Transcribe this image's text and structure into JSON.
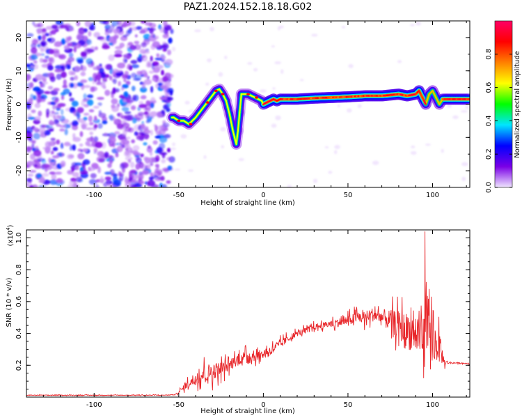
{
  "title": "PAZ1.2024.152.18.18.G02",
  "chart_data": [
    {
      "type": "heatmap",
      "xlabel": "Height of straight line (km)",
      "ylabel": "Frequency (Hz)",
      "xlim": [
        -140,
        122
      ],
      "ylim": [
        -25,
        25
      ],
      "x_ticks": [
        -100,
        -50,
        0,
        50,
        100
      ],
      "y_ticks": [
        -20,
        -10,
        0,
        10,
        20
      ],
      "colorbar": {
        "label": "Normalized spectral amplitude",
        "range": [
          0,
          1
        ],
        "ticks": [
          0.0,
          0.2,
          0.4,
          0.6,
          0.8
        ],
        "tick_labels": [
          "0.0",
          "0.2",
          "0.4",
          "0.6",
          "0.8"
        ],
        "colors": [
          "#f0e6ff",
          "#7a00e6",
          "#0000ff",
          "#00e5ff",
          "#00ff00",
          "#ffff00",
          "#ff8000",
          "#ff0000",
          "#ff0066"
        ]
      },
      "ridge": {
        "description_points_x": [
          -53,
          -50,
          -47,
          -44,
          -42,
          -40,
          -37,
          -34,
          -31,
          -28,
          -26,
          -24,
          -22,
          -20,
          -18,
          -16,
          -15,
          -13,
          -11,
          -9,
          -7,
          -5,
          -3,
          -1,
          0,
          2,
          4,
          6,
          8,
          10,
          15,
          20,
          30,
          40,
          50,
          60,
          70,
          80,
          85,
          90,
          92,
          94,
          96,
          98,
          100,
          102,
          104,
          106,
          110,
          115,
          120
        ],
        "frequency_hz": [
          -4,
          -5,
          -5,
          -6,
          -5,
          -4,
          -2,
          0,
          2,
          4,
          4.5,
          3,
          1,
          -3,
          -8,
          -12,
          -8,
          3,
          3,
          3,
          2.5,
          2,
          1.5,
          1,
          0,
          0.5,
          1,
          1.5,
          1,
          1.5,
          1.5,
          1.5,
          1.8,
          2,
          2.2,
          2.5,
          2.5,
          3,
          2.5,
          3,
          4,
          2,
          0,
          3,
          4,
          2,
          0,
          1.5,
          1.5,
          1.5,
          1.5
        ]
      }
    },
    {
      "type": "line",
      "xlabel": "Height of straight line (km)",
      "ylabel": "SNR (10 * v/v)",
      "y_multiplier": "(x10",
      "y_multiplier_exp": "4",
      "y_multiplier_close": ")",
      "xlim": [
        -140,
        122
      ],
      "ylim": [
        0,
        1.05
      ],
      "x_ticks": [
        -100,
        -50,
        0,
        50,
        100
      ],
      "y_ticks": [
        0.2,
        0.4,
        0.6,
        0.8,
        1.0
      ],
      "y_tick_labels": [
        "0.2",
        "0.4",
        "0.6",
        "0.8",
        "1.0"
      ],
      "line_color": "#e8262a",
      "envelope_x": [
        -140,
        -60,
        -52,
        -48,
        -45,
        -40,
        -35,
        -30,
        -25,
        -20,
        -15,
        -10,
        -5,
        0,
        5,
        10,
        15,
        20,
        25,
        30,
        35,
        40,
        45,
        50,
        55,
        60,
        65,
        70,
        75,
        80,
        85,
        90,
        95,
        100,
        103,
        105,
        107,
        110,
        115,
        122
      ],
      "envelope_y": [
        0.012,
        0.012,
        0.015,
        0.05,
        0.08,
        0.12,
        0.15,
        0.16,
        0.18,
        0.2,
        0.24,
        0.26,
        0.26,
        0.27,
        0.3,
        0.33,
        0.37,
        0.4,
        0.42,
        0.44,
        0.45,
        0.46,
        0.47,
        0.48,
        0.5,
        0.5,
        0.52,
        0.5,
        0.48,
        0.45,
        0.42,
        0.4,
        0.38,
        0.36,
        0.33,
        0.28,
        0.22,
        0.215,
        0.215,
        0.21
      ],
      "noise_amplitude": [
        0.004,
        0.004,
        0.005,
        0.03,
        0.05,
        0.1,
        0.12,
        0.12,
        0.1,
        0.08,
        0.08,
        0.07,
        0.07,
        0.06,
        0.06,
        0.06,
        0.05,
        0.04,
        0.04,
        0.04,
        0.04,
        0.05,
        0.06,
        0.07,
        0.08,
        0.09,
        0.1,
        0.12,
        0.15,
        0.2,
        0.25,
        0.3,
        0.4,
        0.3,
        0.25,
        0.15,
        0.05,
        0.008,
        0.008,
        0.008
      ]
    }
  ]
}
